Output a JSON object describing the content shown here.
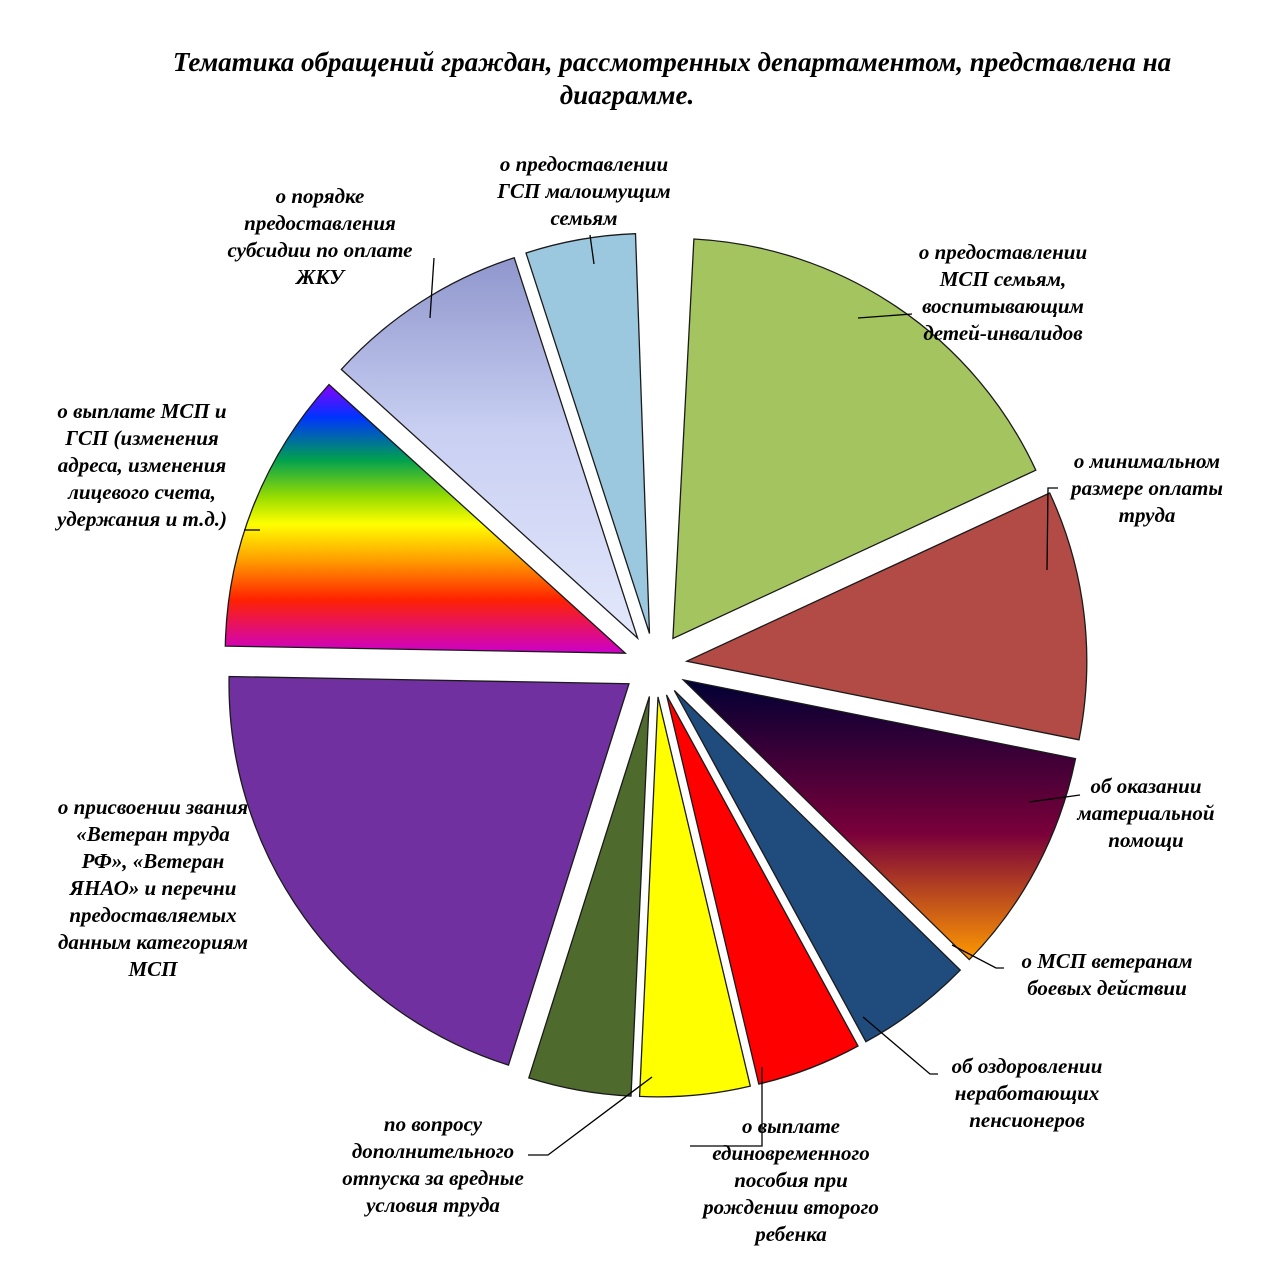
{
  "chart_data": {
    "type": "pie",
    "title": "Тематика обращений граждан, рассмотренных департаментом, представлена на диаграмме.",
    "title_lines": [
      "Тематика обращений граждан, рассмотренных департаментом, представлена на",
      "диаграмме."
    ],
    "legend": "none",
    "exploded": true,
    "slices": [
      {
        "label_lines": [
          "о предоставлении",
          "МСП семьям,",
          "воспитывающим",
          "детей-инвалидов"
        ],
        "value": 17.5,
        "color": "#a4c45f",
        "fill": "solid"
      },
      {
        "label_lines": [
          "о минимальном",
          "размере оплаты",
          "труда"
        ],
        "value": 10.2,
        "color": "#b24a46",
        "fill": "solid"
      },
      {
        "label_lines": [
          "об оказании",
          "материальной",
          "помощи"
        ],
        "value": 9.3,
        "colors": [
          "#000033",
          "#7a003a",
          "#ff9900"
        ],
        "fill": "gradient-dark"
      },
      {
        "label_lines": [
          "о МСП ветеранам",
          "боевых действии"
        ],
        "value": 4.8,
        "color": "#1f4b7d",
        "fill": "solid"
      },
      {
        "label_lines": [
          "об оздоровлении",
          "неработающих",
          "пенсионеров"
        ],
        "value": 4.3,
        "color": "#ff0000",
        "fill": "solid"
      },
      {
        "label_lines": [
          "о выплате",
          "единовременного",
          "пособия при",
          "рождении второго",
          "ребенка"
        ],
        "value": 4.5,
        "color": "#ffff00",
        "fill": "solid"
      },
      {
        "label_lines": [
          "по вопросу",
          "дополнительного",
          "отпуска за вредные",
          "условия труда"
        ],
        "value": 4.2,
        "color": "#4f6a2d",
        "fill": "solid"
      },
      {
        "label_lines": [
          "о присвоении звания",
          "«Ветеран труда",
          "РФ», «Ветеран",
          "ЯНАО» и перечни",
          "предоставляемых",
          "данным категориям",
          "МСП"
        ],
        "value": 20.7,
        "color": "#7030a0",
        "fill": "solid"
      },
      {
        "label_lines": [
          "о выплате МСП и",
          "ГСП (изменения",
          "адреса, изменения",
          "лицевого счета,",
          "удержания и т.д.)"
        ],
        "value": 11.6,
        "fill": "rainbow"
      },
      {
        "label_lines": [
          "о порядке",
          "предоставления",
          "субсидии по оплате",
          "ЖКУ"
        ],
        "value": 8.4,
        "colors": [
          "#8f96cc",
          "#dde3f9"
        ],
        "fill": "gradient-light"
      },
      {
        "label_lines": [
          "о предоставлении",
          "ГСП малоимущим",
          "семьям"
        ],
        "value": 4.5,
        "color": "#9bc8de",
        "fill": "solid"
      }
    ]
  }
}
